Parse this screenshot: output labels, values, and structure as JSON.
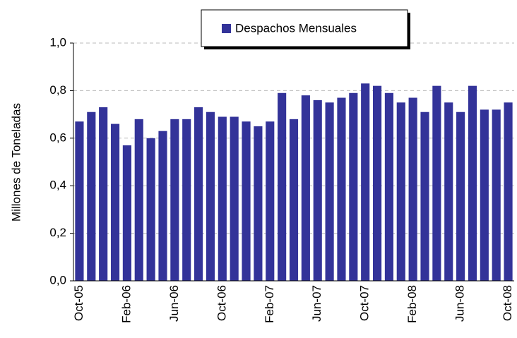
{
  "chart_data": {
    "type": "bar",
    "y_label": "Millones de Toneladas",
    "categories": [
      "Oct-05",
      null,
      null,
      null,
      "Feb-06",
      null,
      null,
      null,
      "Jun-06",
      null,
      null,
      null,
      "Oct-06",
      null,
      null,
      null,
      "Feb-07",
      null,
      null,
      null,
      "Jun-07",
      null,
      null,
      null,
      "Oct-07",
      null,
      null,
      null,
      "Feb-08",
      null,
      null,
      null,
      "Jun-08",
      null,
      null,
      null,
      "Oct-08"
    ],
    "series": [
      {
        "name": "Despachos Mensuales",
        "color": "#333399",
        "values": [
          0.67,
          0.71,
          0.73,
          0.66,
          0.57,
          0.68,
          0.6,
          0.63,
          0.68,
          0.68,
          0.73,
          0.71,
          0.69,
          0.69,
          0.67,
          0.65,
          0.67,
          0.79,
          0.68,
          0.78,
          0.76,
          0.75,
          0.77,
          0.79,
          0.83,
          0.82,
          0.79,
          0.75,
          0.77,
          0.71,
          0.82,
          0.75,
          0.71,
          0.82,
          0.72,
          0.72,
          0.75
        ]
      }
    ],
    "ylim": [
      0,
      1
    ],
    "yticks": [
      {
        "value": 0,
        "label": "0,0"
      },
      {
        "value": 0.2,
        "label": "0,2"
      },
      {
        "value": 0.4,
        "label": "0,4"
      },
      {
        "value": 0.6,
        "label": "0,6"
      },
      {
        "value": 0.8,
        "label": "0,8"
      },
      {
        "value": 1,
        "label": "1,0"
      }
    ],
    "grid": true,
    "legend": "top"
  }
}
